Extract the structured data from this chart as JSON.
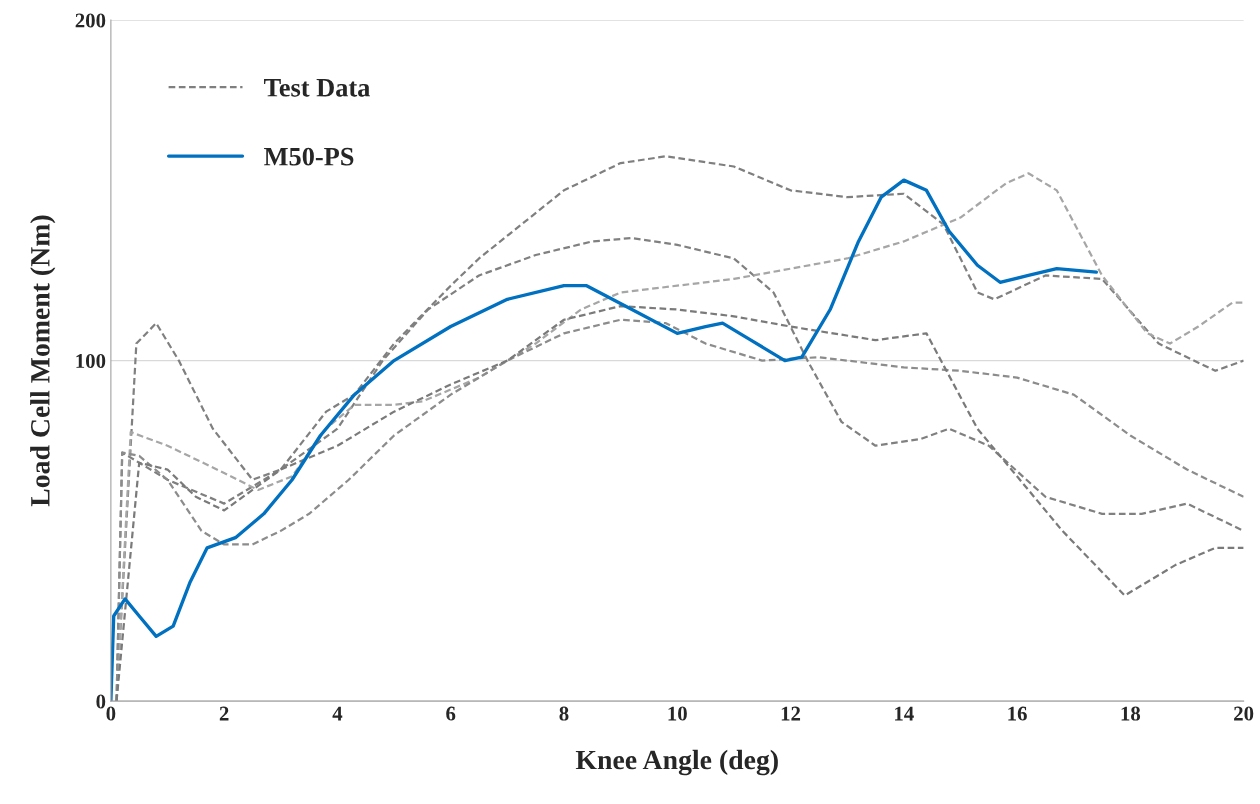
{
  "chart_data": {
    "type": "line",
    "xlabel": "Knee Angle (deg)",
    "ylabel": "Load Cell Moment (Nm)",
    "xlim": [
      0,
      20
    ],
    "ylim": [
      0,
      200
    ],
    "xticks": [
      0,
      2,
      4,
      6,
      8,
      10,
      12,
      14,
      16,
      18,
      20
    ],
    "yticks": [
      0,
      100,
      200
    ],
    "grid": "y",
    "legend": "top left",
    "series": [
      {
        "name": "Test Data",
        "color": "#7f7f7f",
        "line_style": "dashed",
        "x": [
          0.1,
          0.2,
          0.5,
          1,
          2,
          3,
          3.8,
          4.3,
          5,
          6,
          6.5,
          8,
          9,
          9.8,
          11,
          12,
          13,
          14,
          14.7,
          15.3,
          15.6,
          16.5,
          17.5,
          18.5,
          19.5,
          20
        ],
        "values": [
          0,
          73,
          70,
          65,
          58,
          68,
          85,
          90,
          105,
          122,
          130,
          150,
          158,
          160,
          157,
          150,
          148,
          149,
          140,
          120,
          118,
          125,
          124,
          105,
          97,
          100
        ]
      },
      {
        "color": "#808080",
        "line_style": "dashed",
        "x": [
          0.1,
          0.45,
          0.8,
          1.2,
          1.8,
          2.5,
          3,
          4,
          4.8,
          5.6,
          6.5,
          7.5,
          8.5,
          9.2,
          10,
          11,
          11.7,
          12.3,
          12.9,
          13.5,
          14.3,
          14.8,
          15.5,
          16.5,
          17.5,
          18.2,
          19,
          20
        ],
        "values": [
          0,
          105,
          111,
          100,
          80,
          65,
          68,
          80,
          100,
          115,
          125,
          131,
          135,
          136,
          134,
          130,
          120,
          100,
          82,
          75,
          77,
          80,
          75,
          60,
          55,
          55,
          58,
          50
        ]
      },
      {
        "color": "#a6a6a6",
        "line_style": "dashed",
        "x": [
          0.1,
          0.35,
          1,
          2,
          2.6,
          3.2,
          3.8,
          4.3,
          5,
          5.5,
          6.5,
          7.5,
          8.3,
          9,
          10,
          11,
          12,
          13,
          14,
          15,
          15.8,
          16.2,
          16.7,
          17.5,
          18.3,
          18.7,
          19.2,
          19.8,
          20
        ],
        "values": [
          0,
          79,
          75,
          67,
          62,
          66,
          80,
          87,
          87,
          88,
          95,
          105,
          115,
          120,
          122,
          124,
          127,
          130,
          135,
          142,
          152,
          155,
          150,
          125,
          108,
          105,
          110,
          117,
          117
        ]
      },
      {
        "color": "#8c8c8c",
        "line_style": "dashed",
        "x": [
          0.1,
          0.2,
          0.5,
          1,
          1.6,
          2,
          2.5,
          3,
          3.5,
          4.2,
          5,
          6,
          7,
          8,
          9,
          9.8,
          10.5,
          11.5,
          12.5,
          13,
          14,
          15,
          16,
          17,
          18,
          19,
          20
        ],
        "values": [
          0,
          73,
          72,
          65,
          50,
          46,
          46,
          50,
          55,
          65,
          78,
          90,
          100,
          108,
          112,
          111,
          105,
          100,
          101,
          100,
          98,
          97,
          95,
          90,
          78,
          68,
          60
        ]
      },
      {
        "color": "#7a7a7a",
        "line_style": "dashed",
        "x": [
          0.1,
          0.5,
          1,
          1.5,
          2,
          3,
          4,
          5,
          6,
          7,
          8,
          9,
          10,
          11,
          12,
          13.5,
          14.4,
          15.3,
          16.8,
          17.9,
          18.8,
          19.5,
          20
        ],
        "values": [
          0,
          70,
          68,
          60,
          56,
          68,
          75,
          85,
          93,
          100,
          112,
          116,
          115,
          113,
          110,
          106,
          108,
          80,
          50,
          31,
          40,
          45,
          45
        ]
      },
      {
        "name": "M50-PS",
        "color": "#0070c0",
        "line_style": "solid",
        "x": [
          0,
          0.05,
          0.25,
          0.5,
          0.8,
          1.1,
          1.4,
          1.7,
          2.2,
          2.7,
          3.2,
          3.7,
          4.3,
          5,
          6,
          7,
          8,
          8.4,
          9.2,
          10,
          10.5,
          10.8,
          11.3,
          11.9,
          12.2,
          12.7,
          13.2,
          13.6,
          14,
          14.4,
          14.8,
          15.3,
          15.7,
          16.2,
          16.7,
          17.4
        ],
        "values": [
          0,
          25,
          30,
          25,
          19,
          22,
          35,
          45,
          48,
          55,
          65,
          78,
          90,
          100,
          110,
          118,
          122,
          122,
          115,
          108,
          110,
          111,
          106,
          100,
          101,
          115,
          135,
          148,
          153,
          150,
          138,
          128,
          123,
          125,
          127,
          126
        ]
      }
    ]
  }
}
